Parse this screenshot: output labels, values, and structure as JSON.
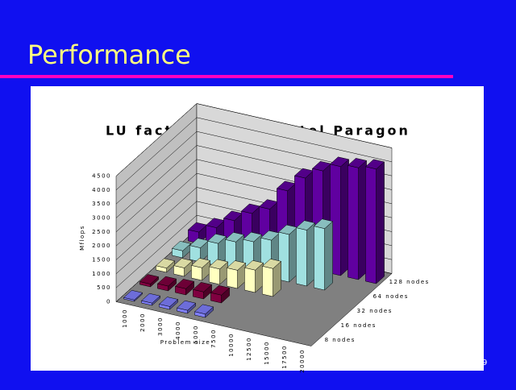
{
  "slide_title": "Performance",
  "slide_number": "9",
  "chart_data": {
    "type": "bar3d",
    "title": "LU fact.+solve on Intel Paragon",
    "x_label": "Problem size",
    "y_label": "Mflops",
    "categories": [
      "1000",
      "2000",
      "3000",
      "4000",
      "5000",
      "7500",
      "10000",
      "12500",
      "15000",
      "17500",
      "20000"
    ],
    "series": [
      {
        "name": "8 nodes",
        "color": "#8080ff",
        "values": [
          50,
          80,
          100,
          110,
          120,
          null,
          null,
          null,
          null,
          null,
          null
        ]
      },
      {
        "name": "16 nodes",
        "color": "#800040",
        "values": [
          100,
          170,
          220,
          250,
          280,
          null,
          null,
          null,
          null,
          null,
          null
        ]
      },
      {
        "name": "32 nodes",
        "color": "#ffffc0",
        "values": [
          150,
          300,
          450,
          550,
          650,
          800,
          1000,
          null,
          null,
          null,
          null
        ]
      },
      {
        "name": "64 nodes",
        "color": "#a0e0e0",
        "values": [
          250,
          500,
          800,
          1000,
          1150,
          1350,
          1700,
          2000,
          2200,
          null,
          null
        ]
      },
      {
        "name": "128 nodes",
        "color": "#6000a0",
        "values": [
          400,
          700,
          1100,
          1500,
          1800,
          2600,
          3200,
          3600,
          3900,
          4000,
          4100
        ]
      }
    ],
    "ylim": [
      0,
      4500
    ],
    "yticks": [
      0,
      500,
      1000,
      1500,
      2000,
      2500,
      3000,
      3500,
      4000,
      4500
    ],
    "grid": true
  }
}
